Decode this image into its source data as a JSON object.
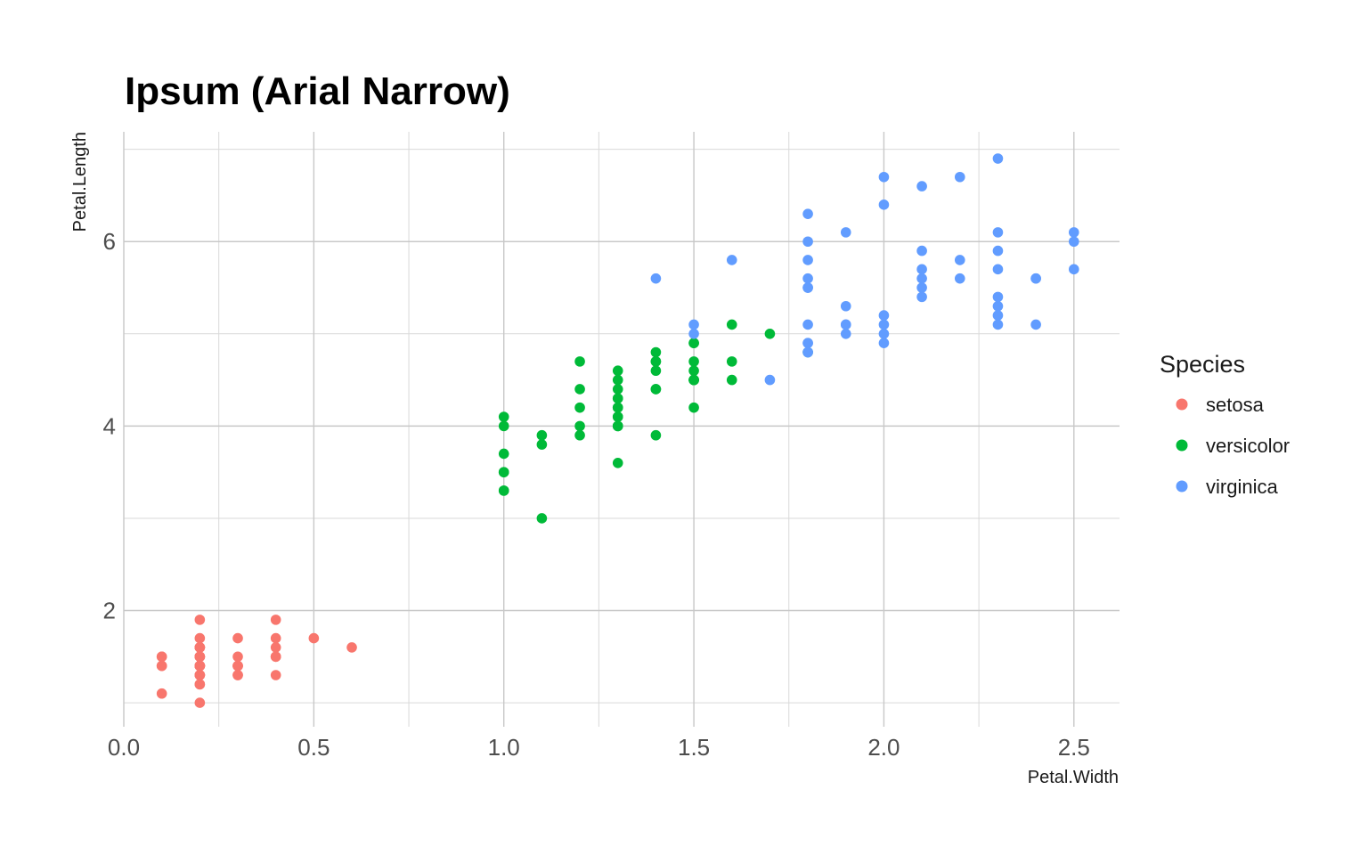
{
  "chart_data": {
    "type": "scatter",
    "title": "Ipsum (Arial Narrow)",
    "xlabel": "Petal.Width",
    "ylabel": "Petal.Length",
    "xlim": [
      0.0,
      2.62
    ],
    "ylim": [
      0.74,
      7.19
    ],
    "x_ticks": [
      0.0,
      0.5,
      1.0,
      1.5,
      2.0,
      2.5
    ],
    "x_tick_labels": [
      "0.0",
      "0.5",
      "1.0",
      "1.5",
      "2.0",
      "2.5"
    ],
    "x_minor_ticks": [
      0.25,
      0.75,
      1.25,
      1.75,
      2.25
    ],
    "y_ticks": [
      2,
      4,
      6
    ],
    "y_tick_labels": [
      "2",
      "4",
      "6"
    ],
    "y_minor_ticks": [
      1,
      3,
      5,
      7
    ],
    "grid": true,
    "legend_position": "right",
    "legend_title": "Species",
    "series": [
      {
        "name": "setosa",
        "color": "#F8766D",
        "points": [
          [
            0.2,
            1.4
          ],
          [
            0.2,
            1.4
          ],
          [
            0.2,
            1.3
          ],
          [
            0.2,
            1.5
          ],
          [
            0.2,
            1.4
          ],
          [
            0.4,
            1.7
          ],
          [
            0.3,
            1.4
          ],
          [
            0.2,
            1.5
          ],
          [
            0.2,
            1.4
          ],
          [
            0.1,
            1.5
          ],
          [
            0.2,
            1.5
          ],
          [
            0.2,
            1.6
          ],
          [
            0.1,
            1.4
          ],
          [
            0.1,
            1.1
          ],
          [
            0.2,
            1.2
          ],
          [
            0.4,
            1.5
          ],
          [
            0.4,
            1.3
          ],
          [
            0.3,
            1.4
          ],
          [
            0.3,
            1.7
          ],
          [
            0.3,
            1.5
          ],
          [
            0.2,
            1.7
          ],
          [
            0.4,
            1.5
          ],
          [
            0.2,
            1.0
          ],
          [
            0.5,
            1.7
          ],
          [
            0.2,
            1.9
          ],
          [
            0.2,
            1.6
          ],
          [
            0.4,
            1.6
          ],
          [
            0.2,
            1.5
          ],
          [
            0.2,
            1.4
          ],
          [
            0.2,
            1.6
          ],
          [
            0.2,
            1.6
          ],
          [
            0.4,
            1.5
          ],
          [
            0.1,
            1.5
          ],
          [
            0.2,
            1.4
          ],
          [
            0.2,
            1.5
          ],
          [
            0.2,
            1.2
          ],
          [
            0.2,
            1.3
          ],
          [
            0.1,
            1.4
          ],
          [
            0.2,
            1.3
          ],
          [
            0.2,
            1.5
          ],
          [
            0.3,
            1.3
          ],
          [
            0.3,
            1.3
          ],
          [
            0.2,
            1.3
          ],
          [
            0.6,
            1.6
          ],
          [
            0.4,
            1.9
          ],
          [
            0.3,
            1.4
          ],
          [
            0.2,
            1.6
          ],
          [
            0.2,
            1.4
          ],
          [
            0.2,
            1.5
          ],
          [
            0.2,
            1.4
          ]
        ]
      },
      {
        "name": "versicolor",
        "color": "#00BA38",
        "points": [
          [
            1.4,
            4.7
          ],
          [
            1.5,
            4.5
          ],
          [
            1.5,
            4.9
          ],
          [
            1.3,
            4.0
          ],
          [
            1.5,
            4.6
          ],
          [
            1.3,
            4.5
          ],
          [
            1.6,
            4.7
          ],
          [
            1.0,
            3.3
          ],
          [
            1.3,
            4.6
          ],
          [
            1.4,
            3.9
          ],
          [
            1.0,
            3.5
          ],
          [
            1.5,
            4.2
          ],
          [
            1.0,
            4.0
          ],
          [
            1.4,
            4.7
          ],
          [
            1.3,
            3.6
          ],
          [
            1.4,
            4.4
          ],
          [
            1.5,
            4.5
          ],
          [
            1.0,
            4.1
          ],
          [
            1.5,
            4.5
          ],
          [
            1.1,
            3.9
          ],
          [
            1.8,
            4.8
          ],
          [
            1.3,
            4.0
          ],
          [
            1.5,
            4.9
          ],
          [
            1.2,
            4.7
          ],
          [
            1.3,
            4.3
          ],
          [
            1.4,
            4.4
          ],
          [
            1.4,
            4.8
          ],
          [
            1.7,
            5.0
          ],
          [
            1.5,
            4.5
          ],
          [
            1.0,
            3.5
          ],
          [
            1.1,
            3.8
          ],
          [
            1.0,
            3.7
          ],
          [
            1.2,
            3.9
          ],
          [
            1.6,
            5.1
          ],
          [
            1.5,
            4.5
          ],
          [
            1.6,
            4.5
          ],
          [
            1.5,
            4.7
          ],
          [
            1.3,
            4.4
          ],
          [
            1.3,
            4.1
          ],
          [
            1.3,
            4.0
          ],
          [
            1.2,
            4.4
          ],
          [
            1.4,
            4.6
          ],
          [
            1.2,
            4.0
          ],
          [
            1.0,
            3.3
          ],
          [
            1.3,
            4.2
          ],
          [
            1.2,
            4.2
          ],
          [
            1.3,
            4.2
          ],
          [
            1.3,
            4.3
          ],
          [
            1.1,
            3.0
          ],
          [
            1.3,
            4.1
          ]
        ]
      },
      {
        "name": "virginica",
        "color": "#619CFF",
        "points": [
          [
            2.5,
            6.0
          ],
          [
            1.9,
            5.1
          ],
          [
            2.1,
            5.9
          ],
          [
            1.8,
            5.6
          ],
          [
            2.2,
            5.8
          ],
          [
            2.1,
            6.6
          ],
          [
            1.7,
            4.5
          ],
          [
            1.8,
            6.3
          ],
          [
            1.8,
            5.8
          ],
          [
            2.5,
            6.1
          ],
          [
            2.0,
            5.1
          ],
          [
            1.9,
            5.3
          ],
          [
            2.1,
            5.5
          ],
          [
            2.0,
            5.0
          ],
          [
            2.4,
            5.1
          ],
          [
            2.3,
            5.3
          ],
          [
            1.8,
            5.5
          ],
          [
            2.2,
            6.7
          ],
          [
            2.3,
            6.9
          ],
          [
            1.5,
            5.0
          ],
          [
            2.3,
            5.7
          ],
          [
            2.0,
            4.9
          ],
          [
            2.0,
            6.7
          ],
          [
            1.8,
            4.9
          ],
          [
            2.1,
            5.7
          ],
          [
            1.8,
            6.0
          ],
          [
            1.8,
            4.8
          ],
          [
            1.8,
            4.9
          ],
          [
            2.1,
            5.6
          ],
          [
            1.6,
            5.8
          ],
          [
            1.9,
            6.1
          ],
          [
            2.0,
            6.4
          ],
          [
            2.2,
            5.6
          ],
          [
            1.5,
            5.1
          ],
          [
            1.4,
            5.6
          ],
          [
            2.3,
            6.1
          ],
          [
            2.4,
            5.6
          ],
          [
            1.8,
            5.5
          ],
          [
            1.8,
            4.8
          ],
          [
            2.1,
            5.4
          ],
          [
            2.4,
            5.6
          ],
          [
            2.3,
            5.1
          ],
          [
            1.9,
            5.1
          ],
          [
            2.3,
            5.9
          ],
          [
            2.5,
            5.7
          ],
          [
            2.3,
            5.2
          ],
          [
            1.9,
            5.0
          ],
          [
            2.0,
            5.2
          ],
          [
            2.3,
            5.4
          ],
          [
            1.8,
            5.1
          ]
        ]
      }
    ]
  }
}
